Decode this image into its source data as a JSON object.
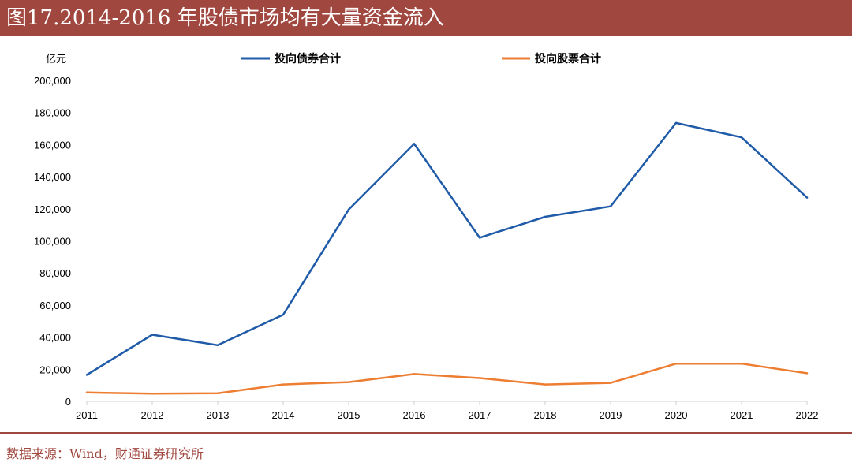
{
  "header": {
    "title": "图17.2014-2016 年股债市场均有大量资金流入"
  },
  "footer": {
    "source": "数据来源：Wind，财通证券研究所"
  },
  "colors": {
    "accent": "#a0473f",
    "bond": "#1f5ba8",
    "stock": "#ed7d31"
  },
  "chart_data": {
    "type": "line",
    "title": "图17.2014-2016 年股债市场均有大量资金流入",
    "xlabel": "",
    "ylabel": "亿元",
    "x": [
      "2011",
      "2012",
      "2013",
      "2014",
      "2015",
      "2016",
      "2017",
      "2018",
      "2019",
      "2020",
      "2021",
      "2022"
    ],
    "ylim": [
      0,
      200000
    ],
    "yticks": [
      0,
      20000,
      40000,
      60000,
      80000,
      100000,
      120000,
      140000,
      160000,
      180000,
      200000
    ],
    "ytick_labels": [
      "0",
      "20,000",
      "40,000",
      "60,000",
      "80,000",
      "100,000",
      "120,000",
      "140,000",
      "160,000",
      "180,000",
      "200,000"
    ],
    "grid": false,
    "legend_position": "top",
    "series": [
      {
        "name": "投向债券合计",
        "color": "#1f5ba8",
        "values": [
          16500,
          41500,
          35000,
          54000,
          119500,
          160500,
          102000,
          115000,
          121500,
          173500,
          164500,
          127000
        ]
      },
      {
        "name": "投向股票合计",
        "color": "#ed7d31",
        "values": [
          5500,
          4800,
          5000,
          10500,
          12000,
          17000,
          14500,
          10500,
          11500,
          23500,
          23500,
          17500
        ]
      }
    ]
  }
}
